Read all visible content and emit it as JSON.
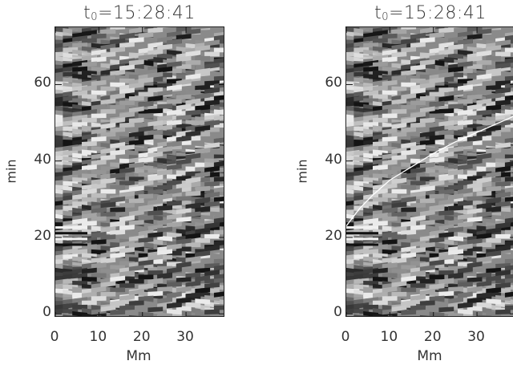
{
  "chart_data": [
    {
      "type": "heatmap",
      "title_main": "t",
      "title_sub": "0",
      "title_rest": "=15:28:41",
      "xlabel": "Mm",
      "ylabel": "min",
      "xlim": [
        0,
        39
      ],
      "ylim": [
        -1,
        75
      ],
      "xticks": [
        "0",
        "10",
        "20",
        "30"
      ],
      "yticks": [
        "0",
        "20",
        "40",
        "60"
      ],
      "colormap": "grayscale",
      "overlay_curve": null
    },
    {
      "type": "heatmap",
      "title_main": "t",
      "title_sub": "0",
      "title_rest": "=15:28:41",
      "xlabel": "Mm",
      "ylabel": "min",
      "xlim": [
        0,
        39
      ],
      "ylim": [
        -1,
        75
      ],
      "xticks": [
        "0",
        "10",
        "20",
        "30"
      ],
      "yticks": [
        "0",
        "20",
        "40",
        "60"
      ],
      "colormap": "grayscale",
      "overlay_curve": {
        "color": "#ffffff",
        "x": [
          0,
          3,
          6,
          10,
          15,
          20,
          25,
          30,
          35,
          39
        ],
        "y": [
          23,
          27.5,
          31,
          35,
          38.5,
          42,
          45,
          47.5,
          50,
          52
        ]
      }
    }
  ]
}
